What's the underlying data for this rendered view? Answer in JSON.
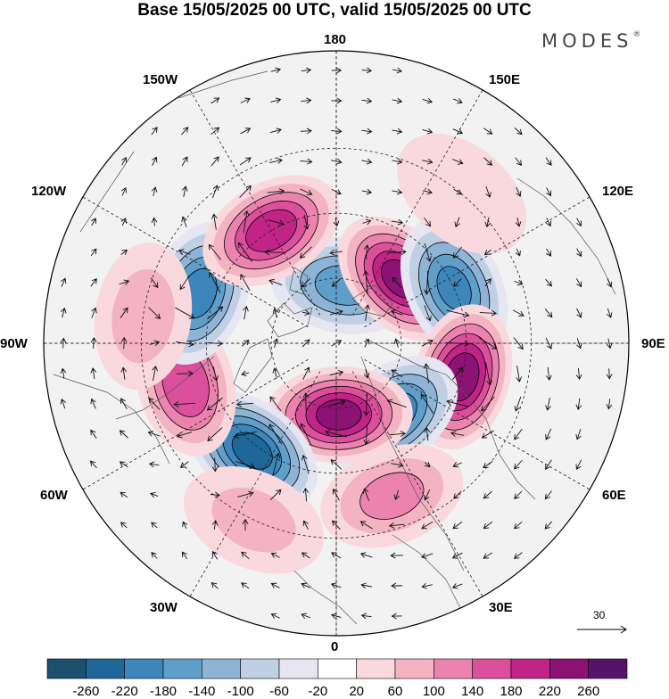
{
  "title": "Base 15/05/2025 00 UTC, valid 15/05/2025 00 UTC",
  "brand": "MODES",
  "brand_mark": "®",
  "longitude_labels": {
    "deg180": "180",
    "deg150e": "150E",
    "deg120e": "120E",
    "deg90e": "90E",
    "deg60e": "60E",
    "deg30e": "30E",
    "deg0": "0",
    "deg30w": "30W",
    "deg60w": "60W",
    "deg90w": "90W",
    "deg120w": "120W",
    "deg150w": "150W"
  },
  "reference_vector": {
    "label": "30"
  },
  "colorbar": {
    "labels": [
      "-260",
      "-220",
      "-180",
      "-140",
      "-100",
      "-60",
      "-20",
      "20",
      "60",
      "100",
      "140",
      "180",
      "220",
      "260"
    ],
    "colors": [
      "#1d4f6e",
      "#1f6798",
      "#3d86bb",
      "#5e9ec9",
      "#8db4d6",
      "#bfcfe4",
      "#e5e6f1",
      "#ffffff",
      "#f9d9dd",
      "#f3b3c2",
      "#eb83ae",
      "#dc4f9d",
      "#bf2486",
      "#8c1273",
      "#55146a"
    ]
  },
  "anomaly_centers": [
    {
      "lon": 172,
      "lat": 72,
      "value": -150
    },
    {
      "lon": 135,
      "lat": 62,
      "value": 230
    },
    {
      "lon": 115,
      "lat": 50,
      "value": -180
    },
    {
      "lon": 75,
      "lat": 50,
      "value": 240
    },
    {
      "lon": 38,
      "lat": 62,
      "value": -200
    },
    {
      "lon": 2,
      "lat": 68,
      "value": 230
    },
    {
      "lon": -38,
      "lat": 48,
      "value": -230
    },
    {
      "lon": -75,
      "lat": 42,
      "value": 170
    },
    {
      "lon": -110,
      "lat": 45,
      "value": -190
    },
    {
      "lon": -150,
      "lat": 50,
      "value": 200
    },
    {
      "lon": -98,
      "lat": 30,
      "value": 70
    },
    {
      "lon": 20,
      "lat": 40,
      "value": 100
    },
    {
      "lon": -25,
      "lat": 30,
      "value": 60
    },
    {
      "lon": 140,
      "lat": 30,
      "value": 40
    }
  ]
}
